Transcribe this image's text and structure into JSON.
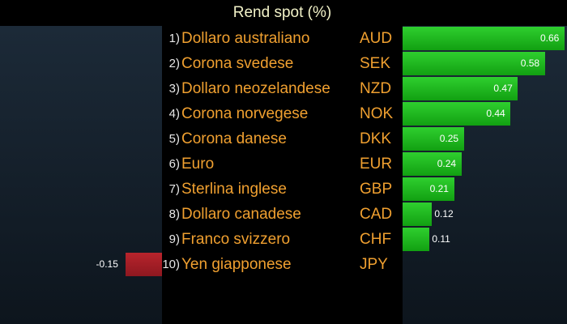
{
  "chart_data": {
    "type": "bar",
    "orientation": "horizontal",
    "title": "Rend spot (%)",
    "ranks": [
      "1)",
      "2)",
      "3)",
      "4)",
      "5)",
      "6)",
      "7)",
      "8)",
      "9)",
      "10)"
    ],
    "categories": [
      "Dollaro australiano",
      "Corona svedese",
      "Dollaro neozelandese",
      "Corona norvegese",
      "Corona danese",
      "Euro",
      "Sterlina inglese",
      "Dollaro canadese",
      "Franco svizzero",
      "Yen giapponese"
    ],
    "codes": [
      "AUD",
      "SEK",
      "NZD",
      "NOK",
      "DKK",
      "EUR",
      "GBP",
      "CAD",
      "CHF",
      "JPY"
    ],
    "values": [
      0.66,
      0.58,
      0.47,
      0.44,
      0.25,
      0.24,
      0.21,
      0.12,
      0.11,
      -0.15
    ],
    "value_labels": [
      "0.66",
      "0.58",
      "0.47",
      "0.44",
      "0.25",
      "0.24",
      "0.21",
      "0.12",
      "0.11",
      "-0.15"
    ],
    "colors": {
      "positive": "#1fb81f",
      "negative": "#a01e26",
      "label": "#f0a030",
      "title": "#f2f2c8"
    },
    "grid": false,
    "legend": "none"
  }
}
